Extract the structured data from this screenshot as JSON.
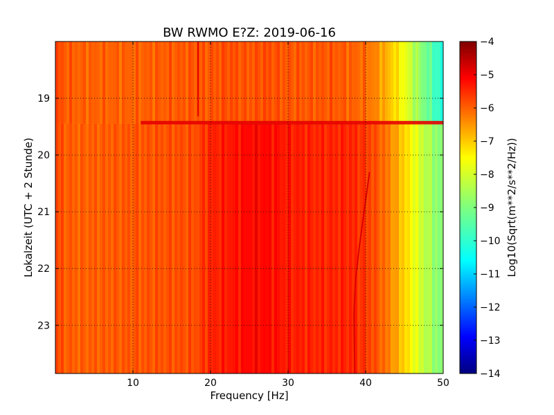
{
  "chart_data": {
    "type": "heatmap",
    "title": "BW RWMO E?Z: 2019-06-16",
    "xlabel": "Frequency [Hz]",
    "ylabel": "Lokalzeit (UTC + 2 Stunde)",
    "xlim": [
      0,
      50
    ],
    "ylim": [
      23.85,
      18.0
    ],
    "x_ticks": [
      10,
      20,
      30,
      40,
      50
    ],
    "y_ticks": [
      19,
      20,
      21,
      22,
      23
    ],
    "grid": true,
    "colormap": "jet",
    "colorbar": {
      "label": "Log10(Sqrt(m**2/s**2/Hz))",
      "range": [
        -14,
        -4
      ],
      "ticks": [
        -4,
        -5,
        -6,
        -7,
        -8,
        -9,
        -10,
        -11,
        -12,
        -13,
        -14
      ]
    },
    "spectral_profile": {
      "frequency_hz": [
        0,
        1,
        3,
        10,
        18,
        20,
        22,
        25,
        27,
        30,
        33,
        36,
        38,
        40,
        41,
        42,
        43,
        44,
        45,
        46,
        47,
        48,
        49,
        50
      ],
      "level_before_19_4h": [
        -5.9,
        -6.1,
        -6.2,
        -6.2,
        -6.1,
        -6.1,
        -6.0,
        -6.1,
        -6.0,
        -6.1,
        -6.1,
        -6.1,
        -6.2,
        -6.3,
        -6.5,
        -6.8,
        -7.1,
        -7.5,
        -7.9,
        -8.4,
        -8.8,
        -9.2,
        -9.6,
        -10.0
      ],
      "level_after_19_4h": [
        -5.9,
        -6.1,
        -6.2,
        -6.1,
        -6.0,
        -5.6,
        -5.5,
        -5.3,
        -5.3,
        -5.5,
        -5.6,
        -5.6,
        -5.6,
        -5.8,
        -6.0,
        -6.2,
        -6.5,
        -6.9,
        -7.3,
        -7.8,
        -8.2,
        -8.5,
        -8.8,
        -9.0
      ]
    },
    "features": [
      {
        "kind": "horizontal_band",
        "time_h": 19.43,
        "level": -5.0
      },
      {
        "kind": "vertical_line",
        "frequency_hz": 18.4,
        "time_start_h": 18.0,
        "time_end_h": 19.32,
        "level": -5.0
      },
      {
        "kind": "drifting_line",
        "time_h": [
          20.3,
          21.0,
          21.6,
          22.2,
          22.8,
          23.85
        ],
        "frequency_hz": [
          40.5,
          39.8,
          39.2,
          38.7,
          38.5,
          38.6
        ],
        "level": -4.9
      }
    ]
  }
}
